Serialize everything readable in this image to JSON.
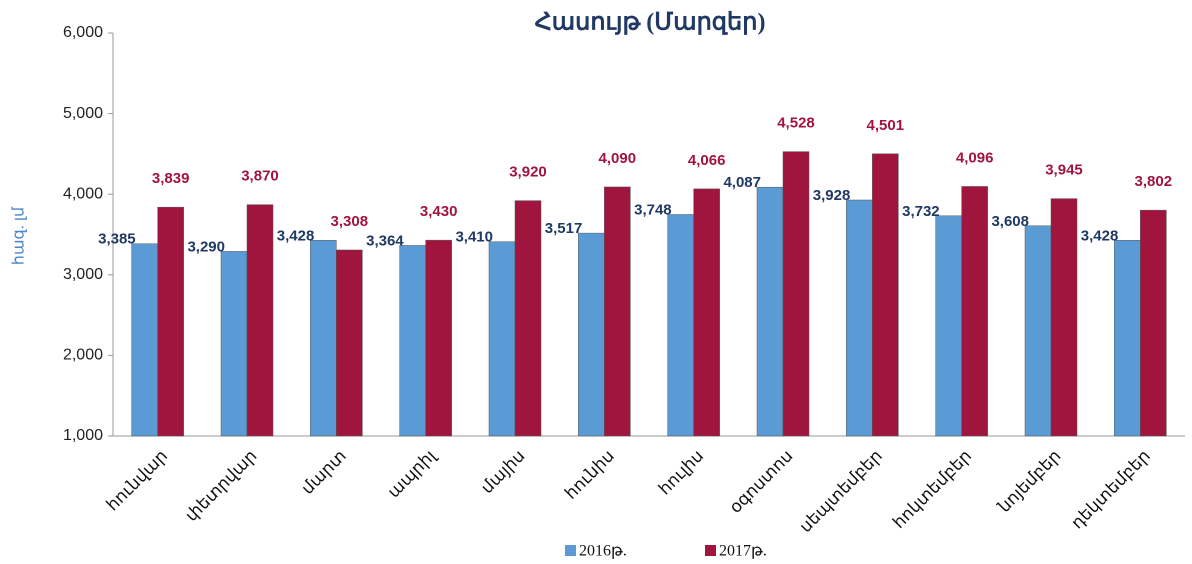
{
  "chart_data": {
    "type": "bar",
    "title": "Հասույթ (Մարզեր)",
    "y_label": "հազ. լմ",
    "categories": [
      "հունվար",
      "փետրվար",
      "մարտ",
      "ապրիլ",
      "մայիս",
      "հունիս",
      "հուլիս",
      "օգոստոս",
      "սեպտեմբեր",
      "հոկտեմբեր",
      "նոյեմբեր",
      "դեկտեմբեր"
    ],
    "series": [
      {
        "name": "2016թ.",
        "color": "#5b9bd5",
        "label_color": "#1f3864",
        "values": [
          3385,
          3290,
          3428,
          3364,
          3410,
          3517,
          3748,
          4087,
          3928,
          3732,
          3608,
          3428
        ],
        "value_labels": [
          "3,385",
          "3,290",
          "3,428",
          "3,364",
          "3,410",
          "3,517",
          "3,748",
          "4,087",
          "3,928",
          "3,732",
          "3,608",
          "3,428"
        ]
      },
      {
        "name": "2017թ.",
        "color": "#a0153e",
        "label_color": "#a0153e",
        "values": [
          3839,
          3870,
          3308,
          3430,
          3920,
          4090,
          4066,
          4528,
          4501,
          4096,
          3945,
          3802
        ],
        "value_labels": [
          "3,839",
          "3,870",
          "3,308",
          "3,430",
          "3,920",
          "4,090",
          "4,066",
          "4,528",
          "4,501",
          "4,096",
          "3,945",
          "3,802"
        ]
      }
    ],
    "ylim": [
      1000,
      6000
    ],
    "yticks": [
      {
        "value": 1000,
        "label": "1,000"
      },
      {
        "value": 2000,
        "label": "2,000"
      },
      {
        "value": 3000,
        "label": "3,000"
      },
      {
        "value": 4000,
        "label": "4,000"
      },
      {
        "value": 5000,
        "label": "5,000"
      },
      {
        "value": 6000,
        "label": "6,000"
      }
    ],
    "legend": "bottom"
  }
}
